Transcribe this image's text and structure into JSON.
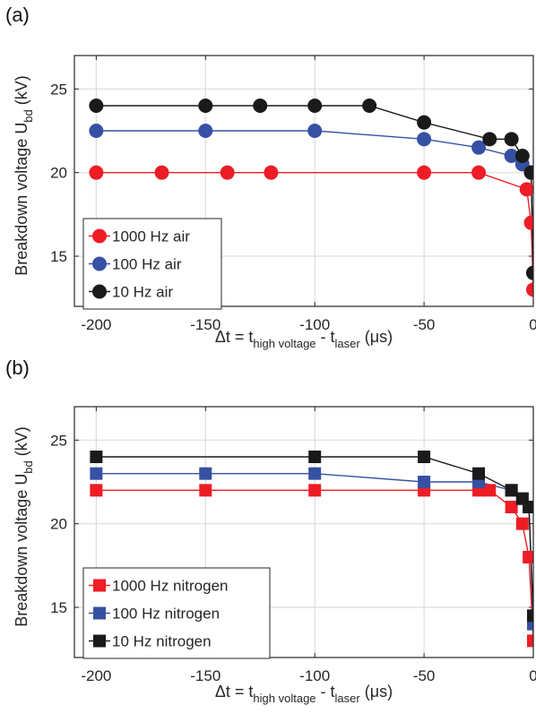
{
  "panel_labels": [
    "(a)",
    "(b)"
  ],
  "colors": {
    "1000": "#ee1c25",
    "100": "#3651a3",
    "10": "#1a1a1a"
  },
  "chart_data": [
    {
      "type": "line",
      "panel": "(a)",
      "title": "",
      "xlabel": "Δt = t_high voltage - t_laser (μs)",
      "xlabel_parts": {
        "base": "Δt = t",
        "sub1": "high voltage",
        "mid": " - t",
        "sub2": "laser",
        "unit": " (μs)"
      },
      "ylabel": "Breakdown voltage U_bd (kV)",
      "ylabel_parts": {
        "base": "Breakdown voltage U",
        "sub": "bd",
        "unit": " (kV)"
      },
      "xlim": [
        -210,
        0
      ],
      "ylim": [
        12,
        27
      ],
      "xticks": [
        -200,
        -150,
        -100,
        -50,
        0
      ],
      "xtick_labels": [
        "-200",
        "-150",
        "-100",
        "-50",
        "0"
      ],
      "yticks": [
        15,
        20,
        25
      ],
      "ytick_labels": [
        "15",
        "20",
        "25"
      ],
      "grid": true,
      "marker": "circle",
      "legend_position": "bottom-left",
      "series": [
        {
          "name": "1000 Hz air",
          "color": "#ee1c25",
          "x": [
            -200,
            -170,
            -140,
            -120,
            -50,
            -25,
            -3,
            -1,
            0
          ],
          "y": [
            20,
            20,
            20,
            20,
            20,
            20,
            19,
            17,
            13
          ]
        },
        {
          "name": "100 Hz air",
          "color": "#3651a3",
          "x": [
            -200,
            -150,
            -100,
            -50,
            -25,
            -10,
            -5,
            -1,
            0
          ],
          "y": [
            22.5,
            22.5,
            22.5,
            22,
            21.5,
            21,
            20.5,
            20,
            14
          ]
        },
        {
          "name": "10 Hz air",
          "color": "#1a1a1a",
          "x": [
            -200,
            -150,
            -125,
            -100,
            -75,
            -50,
            -20,
            -10,
            -5,
            -1,
            0
          ],
          "y": [
            24,
            24,
            24,
            24,
            24,
            23,
            22,
            22,
            21,
            20,
            14
          ]
        }
      ]
    },
    {
      "type": "line",
      "panel": "(b)",
      "title": "",
      "xlabel": "Δt = t_high voltage - t_laser (μs)",
      "xlabel_parts": {
        "base": "Δt = t",
        "sub1": "high voltage",
        "mid": " - t",
        "sub2": "laser",
        "unit": " (μs)"
      },
      "ylabel": "Breakdown voltage U_bd (kV)",
      "ylabel_parts": {
        "base": "Breakdown voltage U",
        "sub": "bd",
        "unit": " (kV)"
      },
      "xlim": [
        -210,
        0
      ],
      "ylim": [
        12,
        27
      ],
      "xticks": [
        -200,
        -150,
        -100,
        -50,
        0
      ],
      "xtick_labels": [
        "-200",
        "-150",
        "-100",
        "-50",
        "0"
      ],
      "yticks": [
        15,
        20,
        25
      ],
      "ytick_labels": [
        "15",
        "20",
        "25"
      ],
      "grid": true,
      "marker": "square",
      "legend_position": "bottom-left",
      "series": [
        {
          "name": "1000 Hz nitrogen",
          "color": "#ee1c25",
          "x": [
            -200,
            -150,
            -100,
            -50,
            -25,
            -20,
            -10,
            -5,
            -2,
            0
          ],
          "y": [
            22,
            22,
            22,
            22,
            22,
            22,
            21,
            20,
            18,
            13
          ]
        },
        {
          "name": "100 Hz nitrogen",
          "color": "#3651a3",
          "x": [
            -200,
            -150,
            -100,
            -50,
            -25,
            -10,
            -5,
            -2,
            0
          ],
          "y": [
            23,
            23,
            23,
            22.5,
            22.5,
            22,
            21.5,
            21,
            14
          ]
        },
        {
          "name": "10 Hz nitrogen",
          "color": "#1a1a1a",
          "x": [
            -200,
            -100,
            -50,
            -25,
            -10,
            -5,
            -2,
            0
          ],
          "y": [
            24,
            24,
            24,
            23,
            22,
            21.5,
            21,
            14.5
          ]
        }
      ]
    }
  ]
}
